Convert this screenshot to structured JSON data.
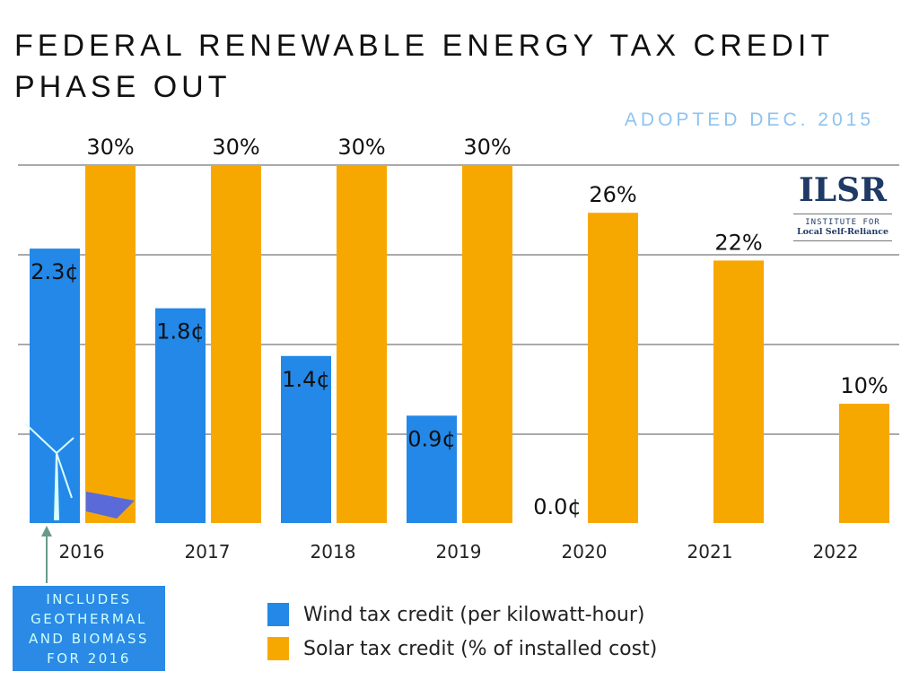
{
  "title_line1": "FEDERAL RENEWABLE ENERGY TAX CREDIT",
  "title_line2": "PHASE OUT",
  "subtitle": "ADOPTED DEC. 2015",
  "logo": {
    "text": "ILSR",
    "line1": "INSTITUTE FOR",
    "line2": "Local Self-Reliance"
  },
  "note": [
    "INCLUDES",
    "GEOTHERMAL",
    "AND BIOMASS",
    "FOR 2016"
  ],
  "colors": {
    "wind": "#2388e8",
    "solar": "#f7a800"
  },
  "chart_data": {
    "type": "bar",
    "categories": [
      "2016",
      "2017",
      "2018",
      "2019",
      "2020",
      "2021",
      "2022"
    ],
    "series": [
      {
        "name": "Wind tax credit (per kilowatt-hour)",
        "values": [
          2.3,
          1.8,
          1.4,
          0.9,
          0.0,
          null,
          null
        ],
        "labels": [
          "2.3¢",
          "1.8¢",
          "1.4¢",
          "0.9¢",
          "0.0¢",
          "",
          ""
        ],
        "unit": "¢/kWh",
        "ylim": [
          0,
          3
        ]
      },
      {
        "name": "Solar tax credit (% of installed cost)",
        "values": [
          30,
          30,
          30,
          30,
          26,
          22,
          10
        ],
        "labels": [
          "30%",
          "30%",
          "30%",
          "30%",
          "26%",
          "22%",
          "10%"
        ],
        "unit": "%",
        "ylim": [
          0,
          30
        ]
      }
    ],
    "grid": true,
    "legend": "bottom"
  }
}
